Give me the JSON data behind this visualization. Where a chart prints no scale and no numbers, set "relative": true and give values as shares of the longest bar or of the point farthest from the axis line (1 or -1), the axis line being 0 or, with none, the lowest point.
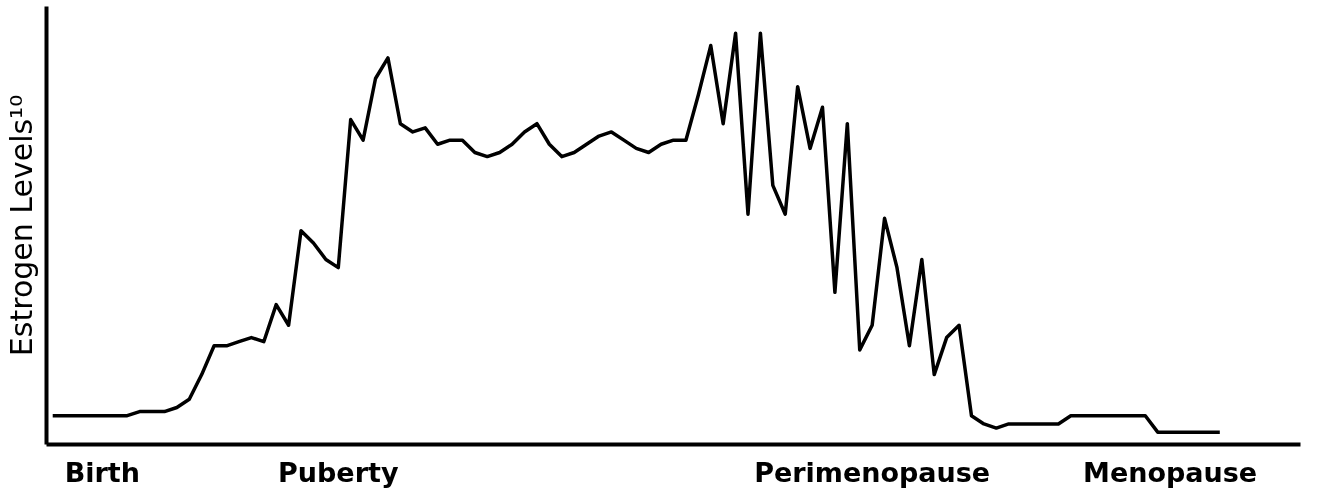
{
  "chart_data": {
    "type": "line",
    "ylabel": "Estrogen Levels¹⁰",
    "relative": true,
    "tick_labels": "x",
    "grid": false,
    "marker": "none",
    "line_style": "solid",
    "categories": [
      null,
      null,
      null,
      null,
      "Birth",
      null,
      null,
      null,
      null,
      null,
      null,
      null,
      null,
      null,
      null,
      null,
      null,
      null,
      null,
      null,
      null,
      null,
      null,
      "Puberty",
      null,
      null,
      null,
      null,
      null,
      null,
      null,
      null,
      null,
      null,
      null,
      null,
      null,
      null,
      null,
      null,
      null,
      null,
      null,
      null,
      null,
      null,
      null,
      null,
      null,
      null,
      null,
      null,
      null,
      null,
      null,
      null,
      null,
      null,
      null,
      null,
      null,
      null,
      null,
      null,
      null,
      null,
      "Perimenopause",
      null,
      null,
      null,
      null,
      null,
      null,
      null,
      null,
      null,
      null,
      null,
      null,
      null,
      null,
      null,
      null,
      null,
      null,
      null,
      null,
      null,
      null,
      null,
      "Menopause",
      null,
      null,
      null,
      null,
      null,
      null,
      null,
      null,
      null,
      null
    ],
    "series": [
      {
        "color": "#000000",
        "values": [
          0.07,
          0.07,
          0.07,
          0.07,
          0.07,
          0.07,
          0.07,
          0.08,
          0.08,
          0.08,
          0.09,
          0.11,
          0.17,
          0.24,
          0.24,
          0.25,
          0.26,
          0.25,
          0.34,
          0.29,
          0.52,
          0.49,
          0.45,
          0.43,
          0.79,
          0.74,
          0.89,
          0.94,
          0.78,
          0.76,
          0.77,
          0.73,
          0.74,
          0.74,
          0.71,
          0.7,
          0.71,
          0.73,
          0.76,
          0.78,
          0.73,
          0.7,
          0.71,
          0.73,
          0.75,
          0.76,
          0.74,
          0.72,
          0.71,
          0.73,
          0.74,
          0.74,
          0.85,
          0.97,
          0.78,
          1.0,
          0.56,
          1.0,
          0.63,
          0.56,
          0.87,
          0.72,
          0.82,
          0.37,
          0.78,
          0.23,
          0.29,
          0.55,
          0.43,
          0.24,
          0.45,
          0.17,
          0.26,
          0.29,
          0.07,
          0.05,
          0.04,
          0.05,
          0.05,
          0.05,
          0.05,
          0.05,
          0.07,
          0.07,
          0.07,
          0.07,
          0.07,
          0.07,
          0.07,
          0.03,
          0.03,
          0.03,
          0.03,
          0.03,
          0.03,
          null,
          null,
          null,
          null,
          null,
          null
        ]
      }
    ]
  }
}
